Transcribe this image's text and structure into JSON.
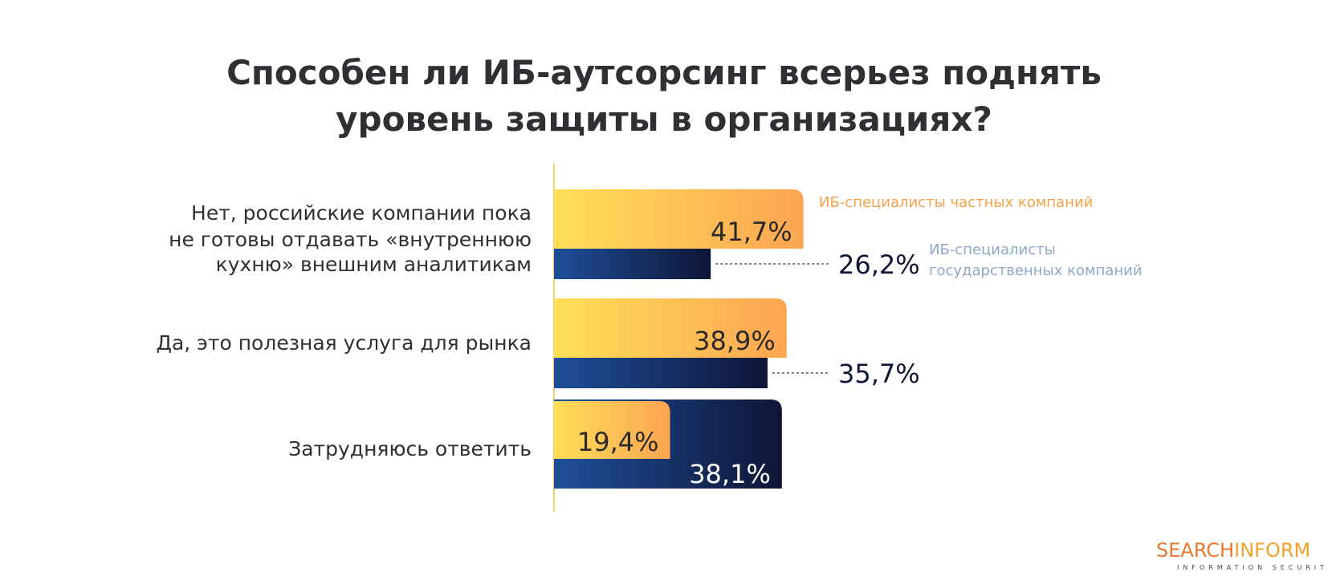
{
  "title_lines": [
    "Способен ли ИБ-аутсорсинг всерьез поднять",
    "уровень защиты в организациях?"
  ],
  "chart_data": {
    "type": "bar",
    "orientation": "horizontal",
    "title": "Способен ли ИБ-аутсорсинг всерьез поднять уровень защиты в организациях?",
    "categories": [
      [
        "Нет, российские компании пока",
        "не готовы отдавать «внутреннюю",
        "кухню» внешним аналитикам"
      ],
      [
        "Да, это полезная услуга для рынка"
      ],
      [
        "Затрудняюсь ответить"
      ]
    ],
    "series": [
      {
        "name": "ИБ-специалисты частных компаний",
        "values": [
          41.7,
          38.9,
          19.4
        ],
        "labels": [
          "41,7%",
          "38,9%",
          "19,4%"
        ],
        "gradient": [
          "#fddf58",
          "#fda552"
        ],
        "label_color": "#2a2a2a"
      },
      {
        "name": [
          "ИБ-специалисты",
          "государственных компаний"
        ],
        "values": [
          26.2,
          35.7,
          38.1
        ],
        "labels": [
          "26,2%",
          "35,7%",
          "38,1%"
        ],
        "gradient": [
          "#1f4f9a",
          "#0e1636"
        ],
        "label_color": "#0e1636"
      }
    ],
    "legend_colors": {
      "private": "#f6a24a",
      "state": "#8ea8cc"
    },
    "axis_color": "#f2d46a"
  },
  "logo": {
    "part1": "SEARCH",
    "part2": "INFORM",
    "tagline": "INFORMATION SECURITY"
  }
}
